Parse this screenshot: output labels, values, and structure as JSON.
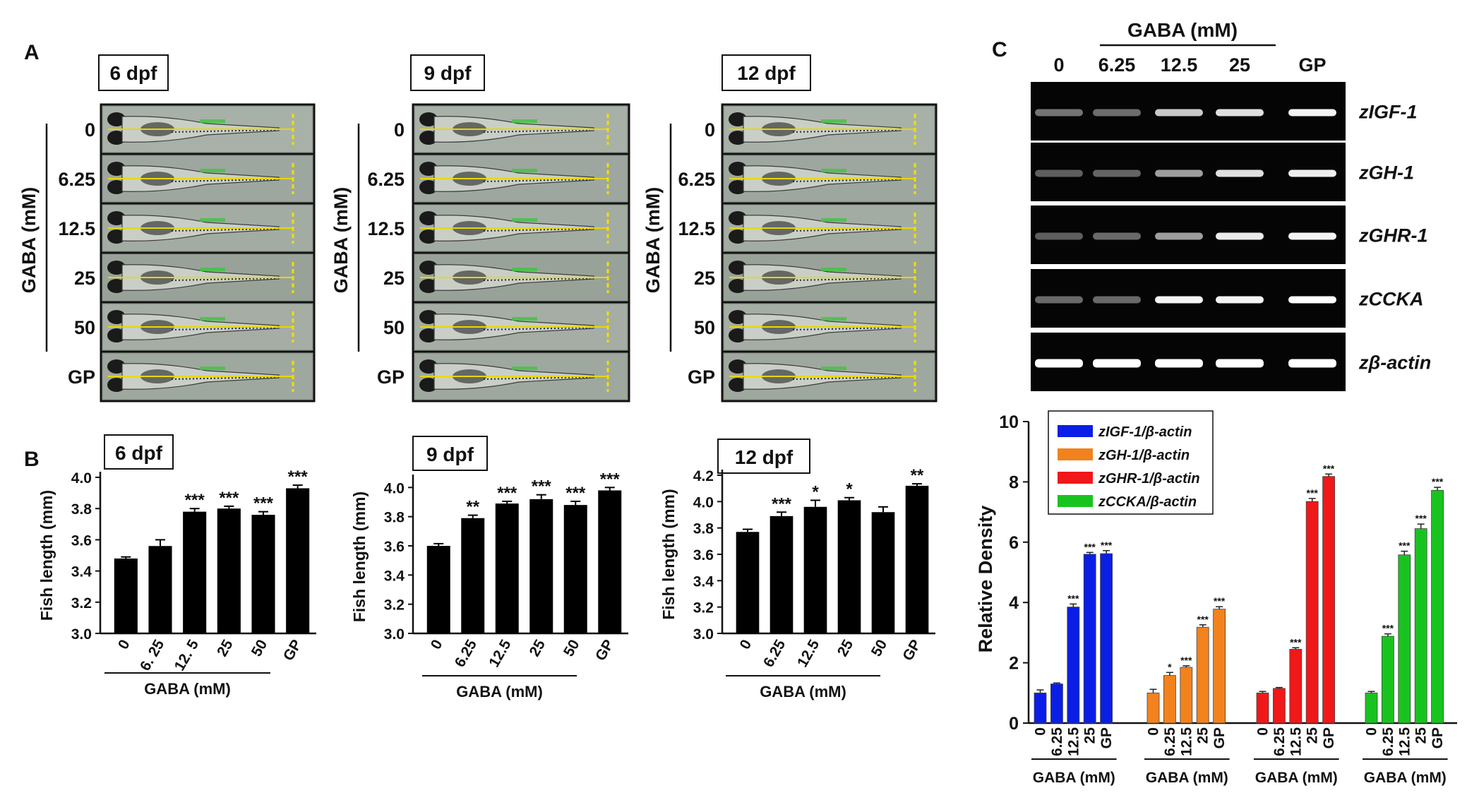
{
  "panels": {
    "A": "A",
    "B": "B",
    "C": "C"
  },
  "panel_a": {
    "axis_label": "GABA (mM)",
    "row_labels": [
      "0",
      "6.25",
      "12.5",
      "25",
      "50",
      "GP"
    ],
    "groups": [
      {
        "title": "6 dpf"
      },
      {
        "title": "9 dpf"
      },
      {
        "title": "12 dpf"
      }
    ]
  },
  "panel_c_gel": {
    "top_label": "GABA (mM)",
    "lane_labels": [
      "0",
      "6.25",
      "12.5",
      "25",
      "GP"
    ],
    "genes": [
      "zIGF-1",
      "zGH-1",
      "zGHR-1",
      "zCCKA",
      "zβ-actin"
    ],
    "band_intensity": [
      [
        0.35,
        0.32,
        0.75,
        0.85,
        0.95
      ],
      [
        0.25,
        0.28,
        0.55,
        0.85,
        0.92
      ],
      [
        0.25,
        0.3,
        0.55,
        0.9,
        0.95
      ],
      [
        0.3,
        0.3,
        0.95,
        0.95,
        1.0
      ],
      [
        1.0,
        1.0,
        1.0,
        1.0,
        1.0
      ]
    ]
  },
  "chart_data": [
    {
      "type": "bar",
      "title": "6 dpf",
      "categories": [
        "0",
        "6. 25",
        "12. 5",
        "25",
        "50",
        "GP"
      ],
      "values": [
        3.48,
        3.56,
        3.78,
        3.8,
        3.76,
        3.93
      ],
      "errors": [
        0.01,
        0.04,
        0.02,
        0.015,
        0.02,
        0.02
      ],
      "significance": [
        "",
        "",
        "***",
        "***",
        "***",
        "***"
      ],
      "xlabel": "GABA (mM)",
      "ylabel": "Fish length (mm)",
      "ylim": [
        3.0,
        4.0
      ],
      "yticks": [
        "3.0",
        "3.2",
        "3.4",
        "3.6",
        "3.8",
        "4.0"
      ],
      "ytick_values": [
        3.0,
        3.2,
        3.4,
        3.6,
        3.8,
        4.0
      ]
    },
    {
      "type": "bar",
      "title": "9 dpf",
      "categories": [
        "0",
        "6.25",
        "12.5",
        "25",
        "50",
        "GP"
      ],
      "values": [
        3.6,
        3.79,
        3.89,
        3.92,
        3.88,
        3.98
      ],
      "errors": [
        0.015,
        0.02,
        0.015,
        0.03,
        0.025,
        0.02
      ],
      "significance": [
        "",
        "**",
        "***",
        "***",
        "***",
        "***"
      ],
      "xlabel": "GABA (mM)",
      "ylabel": "Fish length (mm)",
      "ylim": [
        3.0,
        4.05
      ],
      "yticks": [
        "3.0",
        "3.2",
        "3.4",
        "3.6",
        "3.8",
        "4.0"
      ],
      "ytick_values": [
        3.0,
        3.2,
        3.4,
        3.6,
        3.8,
        4.0
      ]
    },
    {
      "type": "bar",
      "title": "12 dpf",
      "categories": [
        "0",
        "6.25",
        "12.5",
        "25",
        "50",
        "GP"
      ],
      "values": [
        3.77,
        3.89,
        3.96,
        4.01,
        3.92,
        4.12
      ],
      "errors": [
        0.02,
        0.03,
        0.05,
        0.02,
        0.04,
        0.015
      ],
      "significance": [
        "",
        "***",
        "*",
        "*",
        "",
        "**"
      ],
      "xlabel": "GABA (mM)",
      "ylabel": "Fish length (mm)",
      "ylim": [
        3.0,
        4.2
      ],
      "yticks": [
        "3.0",
        "3.2",
        "3.4",
        "3.6",
        "3.8",
        "4.0",
        "4.2"
      ],
      "ytick_values": [
        3.0,
        3.2,
        3.4,
        3.6,
        3.8,
        4.0,
        4.2
      ]
    },
    {
      "type": "bar",
      "title": "",
      "ylabel": "Relative Density",
      "xlabel": "GABA (mM)",
      "ylim": [
        0,
        10
      ],
      "yticks": [
        "0",
        "2",
        "4",
        "6",
        "8",
        "10"
      ],
      "ytick_values": [
        0,
        2,
        4,
        6,
        8,
        10
      ],
      "categories": [
        "0",
        "6.25",
        "12.5",
        "25",
        "GP"
      ],
      "legend_position": "top-left",
      "series": [
        {
          "name": "zIGF-1/β-actin",
          "color": "#0a1ee6",
          "values": [
            1.0,
            1.3,
            3.85,
            5.6,
            5.62
          ],
          "errors": [
            0.1,
            0.03,
            0.1,
            0.06,
            0.1
          ],
          "significance": [
            "",
            "",
            "***",
            "***",
            "***"
          ]
        },
        {
          "name": "zGH-1/β-actin",
          "color": "#f2821e",
          "values": [
            1.0,
            1.58,
            1.85,
            3.18,
            3.78
          ],
          "errors": [
            0.12,
            0.1,
            0.05,
            0.08,
            0.08
          ],
          "significance": [
            "",
            "*",
            "***",
            "***",
            "***"
          ]
        },
        {
          "name": "zGHR-1/β-actin",
          "color": "#f01818",
          "values": [
            1.0,
            1.15,
            2.45,
            7.35,
            8.18
          ],
          "errors": [
            0.05,
            0.03,
            0.05,
            0.1,
            0.08
          ],
          "significance": [
            "",
            "",
            "***",
            "***",
            "***"
          ]
        },
        {
          "name": "zCCKA/β-actin",
          "color": "#19c31f",
          "values": [
            1.0,
            2.88,
            5.58,
            6.45,
            7.72
          ],
          "errors": [
            0.05,
            0.08,
            0.12,
            0.15,
            0.1
          ],
          "significance": [
            "",
            "***",
            "***",
            "***",
            "***"
          ]
        }
      ]
    }
  ]
}
